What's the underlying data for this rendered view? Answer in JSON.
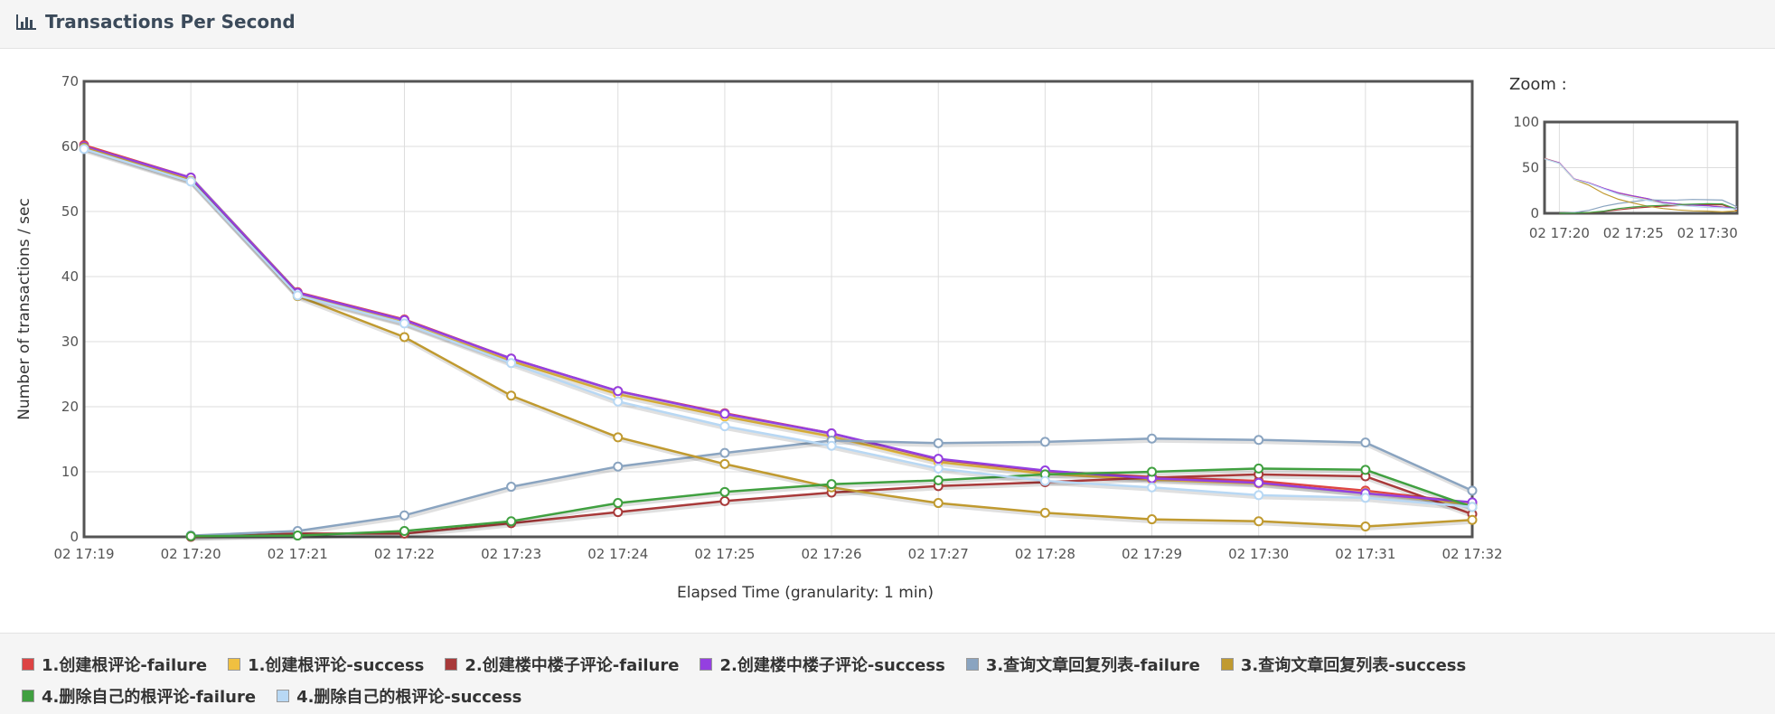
{
  "header": {
    "title": "Transactions Per Second",
    "icon": "bar-chart-icon"
  },
  "zoom": {
    "label": "Zoom :",
    "ylim": [
      0,
      100
    ],
    "yticks": [
      0,
      50,
      100
    ],
    "xticks": [
      "02 17:20",
      "02 17:25",
      "02 17:30"
    ]
  },
  "chart_data": {
    "type": "line",
    "title": "Transactions Per Second",
    "xlabel": "Elapsed Time (granularity: 1 min)",
    "ylabel": "Number of transactions / sec",
    "ylim": [
      0,
      70
    ],
    "yticks": [
      0,
      10,
      20,
      30,
      40,
      50,
      60,
      70
    ],
    "grid": true,
    "legend": "bottom",
    "categories": [
      "02 17:19",
      "02 17:20",
      "02 17:21",
      "02 17:22",
      "02 17:23",
      "02 17:24",
      "02 17:25",
      "02 17:26",
      "02 17:27",
      "02 17:28",
      "02 17:29",
      "02 17:30",
      "02 17:31",
      "02 17:32"
    ],
    "series": [
      {
        "name": "1.创建根评论-failure",
        "color": "#dd4444",
        "values": [
          60.2,
          55.2,
          37.6,
          33.4,
          27.4,
          22.4,
          19.0,
          15.9,
          11.9,
          10.1,
          9.2,
          8.6,
          7.1,
          5.2
        ]
      },
      {
        "name": "1.创建根评论-success",
        "color": "#f0c040",
        "values": [
          59.9,
          54.9,
          37.3,
          32.9,
          27.0,
          21.9,
          18.5,
          15.4,
          11.5,
          9.7,
          8.8,
          8.2,
          6.8,
          5.0
        ]
      },
      {
        "name": "2.创建楼中楼子评论-failure",
        "color": "#a83a3a",
        "values": [
          null,
          0.0,
          0.5,
          0.5,
          2.1,
          3.8,
          5.5,
          6.8,
          7.8,
          8.4,
          9.1,
          9.6,
          9.3,
          3.5
        ]
      },
      {
        "name": "2.创建楼中楼子评论-success",
        "color": "#9440e0",
        "values": [
          60.0,
          55.2,
          37.5,
          33.3,
          27.4,
          22.4,
          18.9,
          15.9,
          12.0,
          10.2,
          9.0,
          8.3,
          6.7,
          5.3
        ]
      },
      {
        "name": "3.查询文章回复列表-failure",
        "color": "#8aa4c0",
        "values": [
          null,
          0.2,
          0.9,
          3.3,
          7.7,
          10.8,
          12.9,
          14.8,
          14.4,
          14.6,
          15.1,
          14.9,
          14.5,
          7.1
        ]
      },
      {
        "name": "3.查询文章回复列表-success",
        "color": "#c09a30",
        "values": [
          59.8,
          54.7,
          37.0,
          30.7,
          21.7,
          15.3,
          11.2,
          7.6,
          5.2,
          3.7,
          2.7,
          2.4,
          1.6,
          2.6
        ]
      },
      {
        "name": "4.删除自己的根评论-failure",
        "color": "#40a040",
        "values": [
          null,
          0.1,
          0.2,
          0.9,
          2.4,
          5.2,
          6.9,
          8.1,
          8.7,
          9.6,
          10.0,
          10.5,
          10.3,
          4.6
        ]
      },
      {
        "name": "4.删除自己的根评论-success",
        "color": "#b8d8f4",
        "values": [
          59.6,
          54.6,
          37.1,
          32.8,
          26.7,
          20.8,
          17.0,
          14.0,
          10.5,
          8.6,
          7.6,
          6.4,
          6.0,
          4.6
        ]
      }
    ]
  }
}
